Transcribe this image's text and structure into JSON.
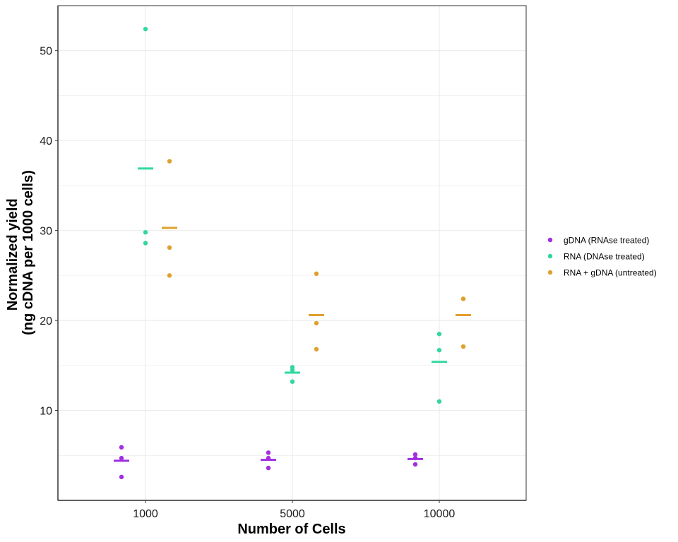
{
  "chart_data": {
    "type": "scatter",
    "title": "",
    "xlabel": "Number of Cells",
    "ylabel_lines": [
      "Normalized yield",
      "(ng cDNA per 1000 cells)"
    ],
    "categories": [
      "1000",
      "5000",
      "10000"
    ],
    "ylim": [
      0,
      55
    ],
    "yticks": [
      10,
      20,
      30,
      40,
      50
    ],
    "grid": true,
    "legend_position": "right",
    "series": [
      {
        "name": "gDNA (RNAse treated)",
        "color": "#a12ee0",
        "points": [
          {
            "category": "1000",
            "y": 5.9
          },
          {
            "category": "1000",
            "y": 4.7
          },
          {
            "category": "1000",
            "y": 2.6
          },
          {
            "category": "5000",
            "y": 5.3
          },
          {
            "category": "5000",
            "y": 4.7
          },
          {
            "category": "5000",
            "y": 3.6
          },
          {
            "category": "10000",
            "y": 5.1
          },
          {
            "category": "10000",
            "y": 4.7
          },
          {
            "category": "10000",
            "y": 4.0
          }
        ],
        "means": [
          4.4,
          4.5,
          4.6
        ]
      },
      {
        "name": "RNA (DNAse treated)",
        "color": "#30d89e",
        "points": [
          {
            "category": "1000",
            "y": 52.4
          },
          {
            "category": "1000",
            "y": 29.8
          },
          {
            "category": "1000",
            "y": 28.6
          },
          {
            "category": "5000",
            "y": 14.8
          },
          {
            "category": "5000",
            "y": 14.5
          },
          {
            "category": "5000",
            "y": 13.2
          },
          {
            "category": "10000",
            "y": 18.5
          },
          {
            "category": "10000",
            "y": 16.7
          },
          {
            "category": "10000",
            "y": 11.0
          }
        ],
        "means": [
          36.9,
          14.2,
          15.4
        ]
      },
      {
        "name": "RNA + gDNA (untreated)",
        "color": "#e0a02e",
        "points": [
          {
            "category": "1000",
            "y": 37.7
          },
          {
            "category": "1000",
            "y": 28.1
          },
          {
            "category": "1000",
            "y": 25.0
          },
          {
            "category": "5000",
            "y": 25.2
          },
          {
            "category": "5000",
            "y": 19.7
          },
          {
            "category": "5000",
            "y": 16.8
          },
          {
            "category": "10000",
            "y": 22.4
          },
          {
            "category": "10000",
            "y": 22.4
          },
          {
            "category": "10000",
            "y": 17.1
          }
        ],
        "means": [
          30.3,
          20.6,
          20.6
        ]
      }
    ]
  }
}
